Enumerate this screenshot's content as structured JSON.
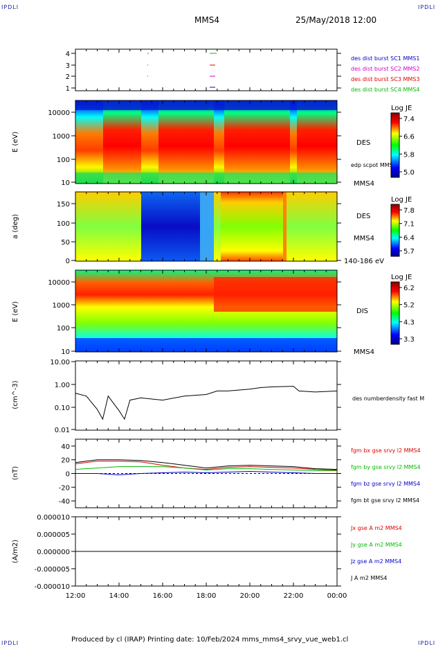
{
  "header": {
    "logo_left": "IPDLI",
    "logo_right": "IPDLI",
    "title": "MMS4",
    "datetime": "25/May/2018 12:00"
  },
  "footer": {
    "text": "Produced by cl (IRAP)   Printing date: 10/Feb/2024   mms_mms4_srvy_vue_web1.cl",
    "logo_left": "IPDLI",
    "logo_right": "IPDLI"
  },
  "time_axis": {
    "ticks": [
      "12:00",
      "14:00",
      "16:00",
      "18:00",
      "20:00",
      "22:00",
      "00:00"
    ]
  },
  "panels": {
    "burst": {
      "yticks": [
        "4",
        "3",
        "2",
        "1"
      ],
      "legend": [
        {
          "text": "des dist burst SC1 MMS1",
          "color": "#0000cc"
        },
        {
          "text": "des dist burst SC2 MMS2",
          "color": "#cc00cc"
        },
        {
          "text": "des dist burst SC3 MMS3",
          "color": "#dd0000"
        },
        {
          "text": "des dist burst SC4 MMS4",
          "color": "#00bb00"
        }
      ]
    },
    "des_energy": {
      "ylabel": "E (eV)",
      "yticks": [
        "10000",
        "1000",
        "100",
        "10"
      ],
      "label_main": "DES",
      "label_overlay": "edp scpot MMS4",
      "label_sc": "MMS4",
      "cbar_title": "Log JE",
      "cbar_ticks": [
        "7.4",
        "6.6",
        "5.8",
        "5.0"
      ]
    },
    "des_pitch": {
      "ylabel": "a (deg)",
      "yticks": [
        "150",
        "100",
        "50",
        "0"
      ],
      "label_main": "DES",
      "label_sc": "MMS4",
      "label_range": "140-186 eV",
      "cbar_title": "Log JE",
      "cbar_ticks": [
        "7.8",
        "7.1",
        "6.4",
        "5.7"
      ]
    },
    "dis_energy": {
      "ylabel": "E (eV)",
      "yticks": [
        "10000",
        "1000",
        "100",
        "10"
      ],
      "label_main": "DIS",
      "label_sc": "MMS4",
      "cbar_title": "Log JE",
      "cbar_ticks": [
        "6.2",
        "5.2",
        "4.3",
        "3.3"
      ]
    },
    "density": {
      "ylabel": "(cm^-3)",
      "yticks": [
        "10.00",
        "1.00",
        "0.10",
        "0.01"
      ],
      "legend": "des numberdensity fast M"
    },
    "bfield": {
      "ylabel": "(nT)",
      "yticks": [
        "40",
        "20",
        "0",
        "-20",
        "-40"
      ],
      "legend": [
        {
          "text": "fgm bx gse srvy l2 MMS4",
          "color": "#dd0000"
        },
        {
          "text": "fgm by gse srvy l2 MMS4",
          "color": "#00bb00"
        },
        {
          "text": "fgm bz gse srvy l2 MMS4",
          "color": "#0000cc"
        },
        {
          "text": "fgm bt gse srvy l2 MMS4",
          "color": "#000000"
        }
      ]
    },
    "current": {
      "ylabel": "(A/m2)",
      "yticks": [
        "0.000010",
        "0.000005",
        "0.000000",
        "-0.000005",
        "-0.000010"
      ],
      "legend": [
        {
          "text": "Jx gse A m2 MMS4",
          "color": "#dd0000"
        },
        {
          "text": "Jy gse A m2 MMS4",
          "color": "#00bb00"
        },
        {
          "text": "Jz gse A m2 MMS4",
          "color": "#0000cc"
        },
        {
          "text": "J A m2 MMS4",
          "color": "#000000"
        }
      ]
    }
  },
  "chart_data": {
    "type": "line",
    "x_range": [
      "12:00",
      "00:00"
    ],
    "density_cm3": {
      "x": [
        "12:00",
        "12:30",
        "13:00",
        "13:15",
        "13:30",
        "14:00",
        "14:15",
        "14:30",
        "15:00",
        "16:00",
        "17:00",
        "18:00",
        "18:30",
        "19:00",
        "20:00",
        "20:30",
        "21:00",
        "22:00",
        "22:15",
        "23:00",
        "00:00"
      ],
      "values": [
        0.4,
        0.3,
        0.08,
        0.03,
        0.3,
        0.07,
        0.03,
        0.2,
        0.25,
        0.2,
        0.3,
        0.35,
        0.5,
        0.5,
        0.6,
        0.7,
        0.75,
        0.8,
        0.5,
        0.45,
        0.5
      ],
      "ylim": [
        0.01,
        10
      ],
      "log": true
    },
    "bfield_nT": {
      "x": [
        "12:00",
        "13:00",
        "14:00",
        "15:00",
        "16:00",
        "17:00",
        "18:00",
        "19:00",
        "20:00",
        "21:00",
        "22:00",
        "23:00",
        "00:00"
      ],
      "series": [
        {
          "name": "fgm bx gse srvy l2 MMS4",
          "values": [
            14,
            18,
            18,
            17,
            12,
            8,
            6,
            9,
            10,
            9,
            8,
            6,
            5
          ]
        },
        {
          "name": "fgm by gse srvy l2 MMS4",
          "values": [
            6,
            8,
            10,
            10,
            10,
            8,
            5,
            7,
            7,
            6,
            5,
            4,
            4
          ]
        },
        {
          "name": "fgm bz gse srvy l2 MMS4",
          "values": [
            0,
            0,
            -2,
            0,
            1,
            2,
            1,
            2,
            3,
            2,
            1,
            0,
            0
          ]
        },
        {
          "name": "fgm bt gse srvy l2 MMS4",
          "values": [
            16,
            20,
            20,
            19,
            16,
            12,
            8,
            11,
            12,
            11,
            10,
            7,
            6
          ]
        }
      ],
      "ylim": [
        -50,
        50
      ]
    },
    "current_Am2": {
      "series": [
        {
          "name": "J A m2 MMS4",
          "values": [
            0,
            0,
            0,
            0,
            0,
            0,
            0,
            0,
            0,
            0,
            0,
            0,
            0
          ]
        }
      ],
      "ylim": [
        -1e-05,
        1e-05
      ]
    },
    "des_energy_ylim_eV": [
      10,
      30000
    ],
    "des_pitch_ylim_deg": [
      0,
      180
    ],
    "dis_energy_ylim_eV": [
      10,
      30000
    ],
    "colorscales": [
      "Log JE"
    ]
  }
}
